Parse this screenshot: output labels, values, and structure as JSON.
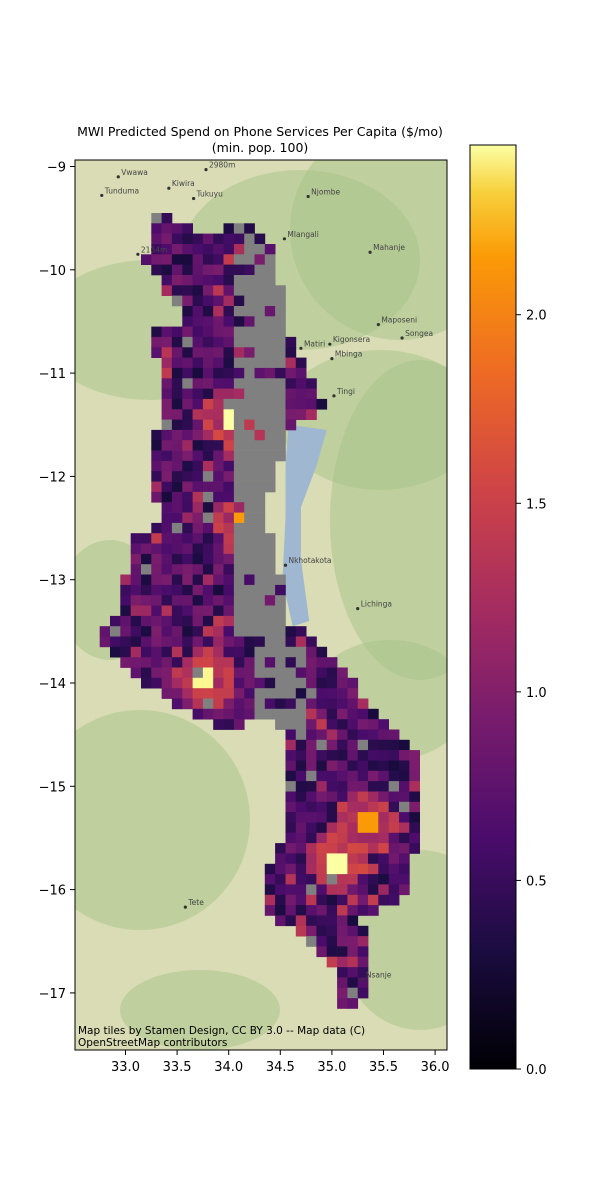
{
  "title_line1": "MWI Predicted Spend on Phone Services Per Capita ($/mo)",
  "title_line2": "(min. pop. 100)",
  "attribution_line1": "Map tiles by Stamen Design, CC BY 3.0 -- Map data (C)",
  "attribution_line2": "OpenStreetMap contributors",
  "map": {
    "extent_lon": [
      32.5,
      36.1
    ],
    "extent_lat": [
      -17.55,
      -8.95
    ],
    "x_ticks": [
      "33.0",
      "33.5",
      "34.0",
      "34.5",
      "35.0",
      "35.5",
      "36.0"
    ],
    "y_ticks": [
      "−9",
      "−10",
      "−11",
      "−12",
      "−13",
      "−14",
      "−15",
      "−16",
      "−17"
    ],
    "colormap": "inferno",
    "no_data_color": "#808080",
    "lake_color": "#9fb7d0",
    "basemap_color": "#d9dcb4"
  },
  "places": [
    {
      "name": "Vwawa",
      "lon": 32.93,
      "lat": -9.1
    },
    {
      "name": "Tunduma",
      "lon": 32.77,
      "lat": -9.28
    },
    {
      "name": "Kiwira",
      "lon": 33.42,
      "lat": -9.21
    },
    {
      "name": "Tukuyu",
      "lon": 33.66,
      "lat": -9.31
    },
    {
      "name": "2980m",
      "lon": 33.78,
      "lat": -9.03
    },
    {
      "name": "Njombe",
      "lon": 34.77,
      "lat": -9.29
    },
    {
      "name": "Mlangali",
      "lon": 34.54,
      "lat": -9.7
    },
    {
      "name": "Mahanje",
      "lon": 35.37,
      "lat": -9.83
    },
    {
      "name": "2164m",
      "lon": 33.12,
      "lat": -9.85
    },
    {
      "name": "Maposeni",
      "lon": 35.45,
      "lat": -10.53
    },
    {
      "name": "Songea",
      "lon": 35.68,
      "lat": -10.66
    },
    {
      "name": "Kigonsera",
      "lon": 34.98,
      "lat": -10.72
    },
    {
      "name": "Matiri",
      "lon": 34.7,
      "lat": -10.76
    },
    {
      "name": "Mbinga",
      "lon": 35.0,
      "lat": -10.86
    },
    {
      "name": "Tingi",
      "lon": 35.02,
      "lat": -11.22
    },
    {
      "name": "Nkhotakota",
      "lon": 34.55,
      "lat": -12.86
    },
    {
      "name": "Lichinga",
      "lon": 35.25,
      "lat": -13.28
    },
    {
      "name": "Nsanje",
      "lon": 35.3,
      "lat": -16.87
    },
    {
      "name": "Tete",
      "lon": 33.58,
      "lat": -16.17
    }
  ],
  "colorbar": {
    "range": [
      0,
      2.45
    ],
    "ticks": [
      "0.0",
      "0.5",
      "1.0",
      "1.5",
      "2.0"
    ]
  },
  "hotspots": [
    {
      "lon": 34.02,
      "lat": -11.42,
      "value": 2.45
    },
    {
      "lon": 33.79,
      "lat": -13.95,
      "value": 2.4
    },
    {
      "lon": 35.05,
      "lat": -15.72,
      "value": 2.45
    },
    {
      "lon": 35.33,
      "lat": -15.36,
      "value": 1.9
    },
    {
      "lon": 34.17,
      "lat": -12.45,
      "value": 1.9
    }
  ]
}
